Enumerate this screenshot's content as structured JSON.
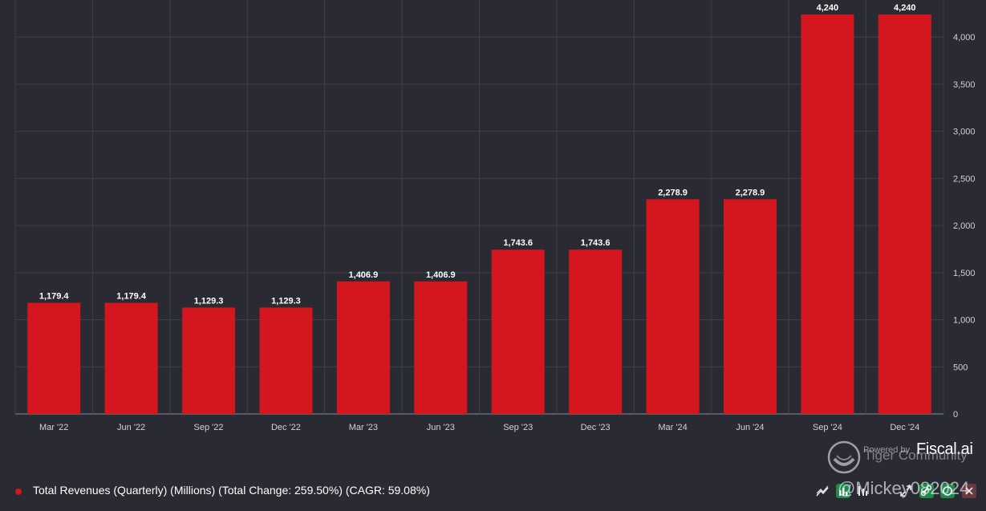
{
  "chart_data": {
    "type": "bar",
    "categories": [
      "Mar '22",
      "Jun '22",
      "Sep '22",
      "Dec '22",
      "Mar '23",
      "Jun '23",
      "Sep '23",
      "Dec '23",
      "Mar '24",
      "Jun '24",
      "Sep '24",
      "Dec '24"
    ],
    "series": [
      {
        "name": "Total Revenues (Quarterly) (Millions) (Total Change: 259.50%) (CAGR: 59.08%)",
        "values": [
          1179.4,
          1179.4,
          1129.3,
          1129.3,
          1406.9,
          1406.9,
          1743.6,
          1743.6,
          2278.9,
          2278.9,
          4240,
          4240
        ],
        "labels": [
          "1,179.4",
          "1,179.4",
          "1,129.3",
          "1,129.3",
          "1,406.9",
          "1,406.9",
          "1,743.6",
          "1,743.6",
          "2,278.9",
          "2,278.9",
          "4,240",
          "4,240"
        ],
        "color": "#d4161f"
      }
    ],
    "y_ticks": [
      0,
      500,
      1000,
      1500,
      2000,
      2500,
      3000,
      3500,
      4000
    ],
    "y_tick_labels": [
      "0",
      "500",
      "1,000",
      "1,500",
      "2,000",
      "2,500",
      "3,000",
      "3,500",
      "4,000"
    ],
    "ylim": [
      0,
      4240
    ],
    "y_axis_side": "right",
    "grid": true,
    "legend_position": "bottom-left"
  },
  "legend": {
    "label": "Total Revenues (Quarterly) (Millions) (Total Change: 259.50%) (CAGR: 59.08%)",
    "dot_color": "#d4161f"
  },
  "watermark": {
    "powered_by": "Powered by",
    "brand": "Fiscal.ai",
    "community": "Tiger Community",
    "user": "@Mickey082024"
  },
  "toolbar": {
    "icons": [
      "trend-line-icon",
      "bar-chart-icon",
      "candlestick-icon",
      "expand-icon",
      "link-icon",
      "refresh-icon",
      "close-icon"
    ]
  },
  "colors": {
    "background": "#2a2a33",
    "grid": "#3f3f4a",
    "bar": "#d4161f",
    "text": "#ffffff",
    "axis_text": "#d0d0d6"
  }
}
